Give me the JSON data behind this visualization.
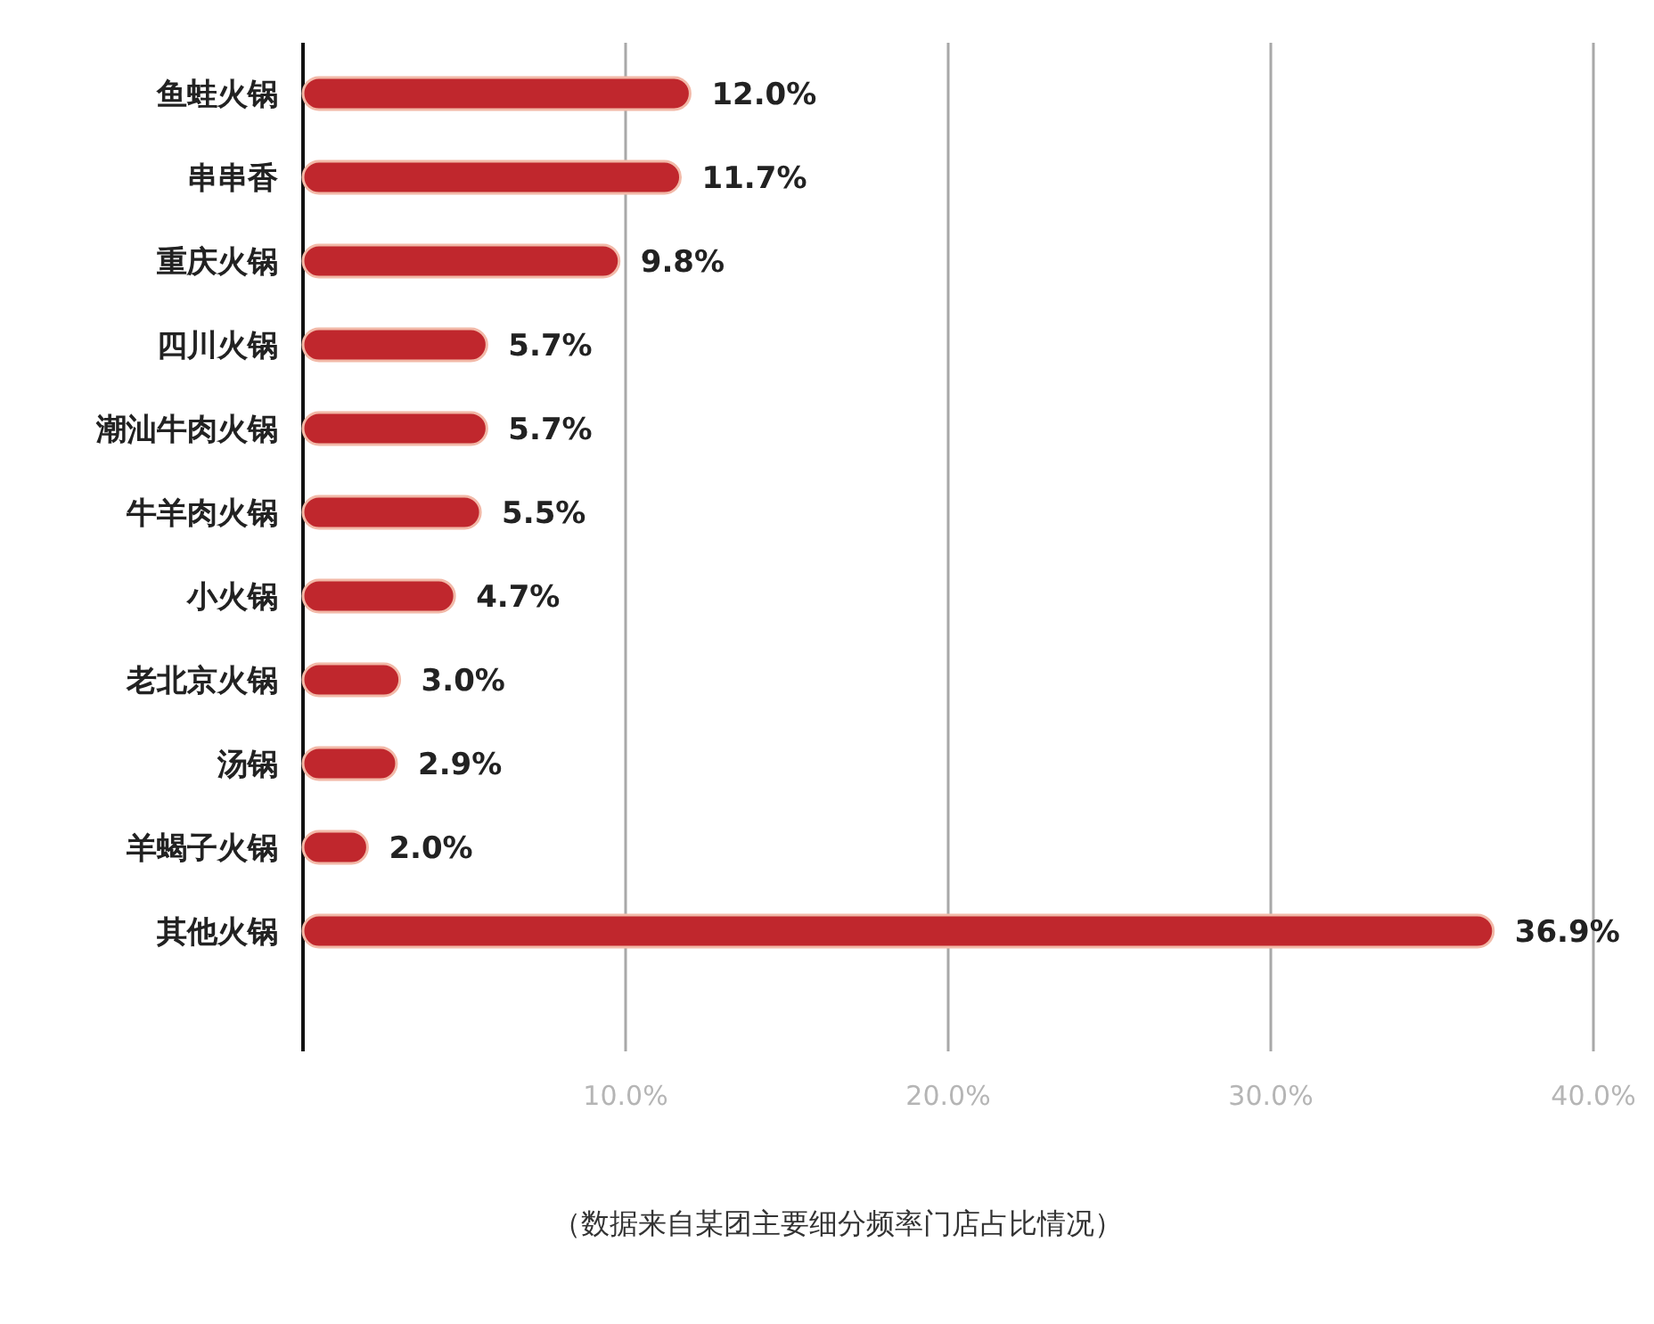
{
  "chart_data": {
    "type": "bar",
    "orientation": "horizontal",
    "categories": [
      "鱼蛙火锅",
      "串串香",
      "重庆火锅",
      "四川火锅",
      "潮汕牛肉火锅",
      "牛羊肉火锅",
      "小火锅",
      "老北京火锅",
      "汤锅",
      "羊蝎子火锅",
      "其他火锅"
    ],
    "values": [
      12.0,
      11.7,
      9.8,
      5.7,
      5.7,
      5.5,
      4.7,
      3.0,
      2.9,
      2.0,
      36.9
    ],
    "value_labels": [
      "12.0%",
      "11.7%",
      "9.8%",
      "5.7%",
      "5.7%",
      "5.5%",
      "4.7%",
      "3.0%",
      "2.9%",
      "2.0%",
      "36.9%"
    ],
    "color": "#c0272d",
    "xlim": [
      0,
      40
    ],
    "xticks": [
      {
        "value": 10,
        "label": "10.0%"
      },
      {
        "value": 20,
        "label": "20.0%"
      },
      {
        "value": 30,
        "label": "30.0%"
      },
      {
        "value": 40,
        "label": "40.0%"
      }
    ],
    "grid": "x",
    "annotations": [
      "（数据来自某团主要细分频率门店占比情况）"
    ]
  }
}
